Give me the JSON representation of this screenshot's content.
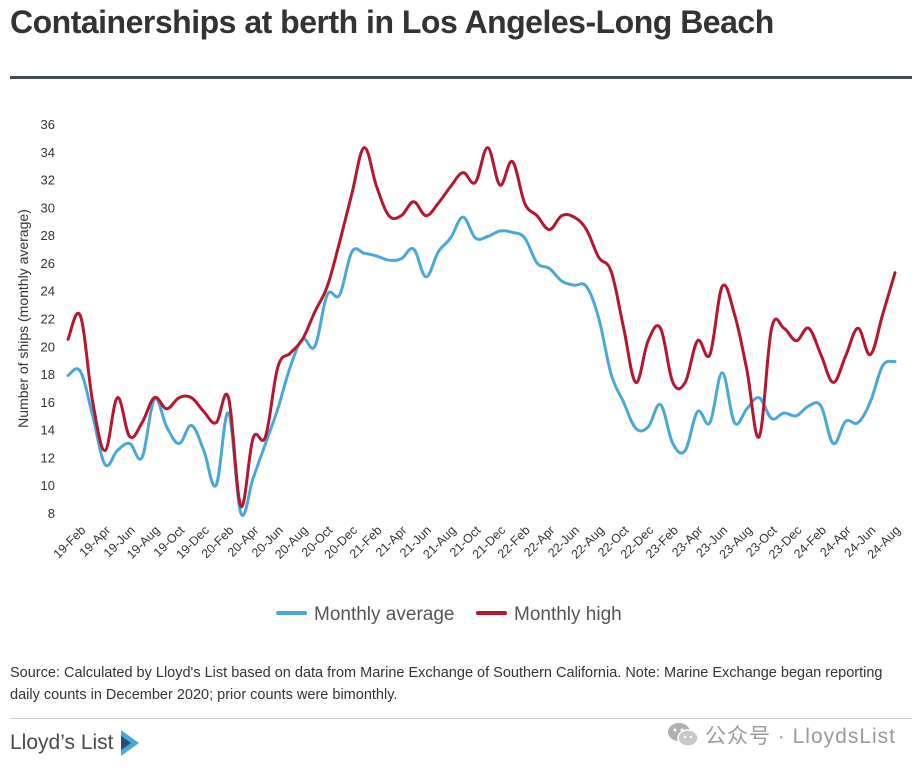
{
  "title": "Containerships at berth in Los Angeles-Long Beach",
  "source": "Source: Calculated by Lloyd's List based on data from Marine Exchange of Southern California. Note: Marine Exchange began reporting daily counts in December 2020; prior counts were bimonthly.",
  "brand": "Lloyd’s List",
  "wechat": "公众号 · LloydsList",
  "colors": {
    "average": "#4aa8d8",
    "high": "#b5172f",
    "rule": "#444a52"
  },
  "chart_data": {
    "type": "line",
    "xlabel": "",
    "ylabel": "Number of ships (monthly average)",
    "ylim": [
      8,
      36
    ],
    "yticks": [
      8,
      10,
      12,
      14,
      16,
      18,
      20,
      22,
      24,
      26,
      28,
      30,
      32,
      34,
      36
    ],
    "xtick_labels": [
      "19-Feb",
      "19-Apr",
      "19-Jun",
      "19-Aug",
      "19-Oct",
      "19-Dec",
      "20-Feb",
      "20-Apr",
      "20-Jun",
      "20-Aug",
      "20-Oct",
      "20-Dec",
      "21-Feb",
      "21-Apr",
      "21-Jun",
      "21-Aug",
      "21-Oct",
      "21-Dec",
      "22-Feb",
      "22-Apr",
      "22-Jun",
      "22-Aug",
      "22-Oct",
      "22-Dec",
      "23-Feb",
      "23-Apr",
      "23-Jun",
      "23-Aug",
      "23-Oct",
      "23-Dec",
      "24-Feb",
      "24-Apr",
      "24-Jun",
      "24-Aug"
    ],
    "x": [
      "19-Jan",
      "19-Feb",
      "19-Mar",
      "19-Apr",
      "19-May",
      "19-Jun",
      "19-Jul",
      "19-Aug",
      "19-Sep",
      "19-Oct",
      "19-Nov",
      "19-Dec",
      "20-Jan",
      "20-Feb",
      "20-Mar",
      "20-Apr",
      "20-May",
      "20-Jun",
      "20-Jul",
      "20-Aug",
      "20-Sep",
      "20-Oct",
      "20-Nov",
      "20-Dec",
      "21-Jan",
      "21-Feb",
      "21-Mar",
      "21-Apr",
      "21-May",
      "21-Jun",
      "21-Jul",
      "21-Aug",
      "21-Sep",
      "21-Oct",
      "21-Nov",
      "21-Dec",
      "22-Jan",
      "22-Feb",
      "22-Mar",
      "22-Apr",
      "22-May",
      "22-Jun",
      "22-Jul",
      "22-Aug",
      "22-Sep",
      "22-Oct",
      "22-Nov",
      "22-Dec",
      "23-Jan",
      "23-Feb",
      "23-Mar",
      "23-Apr",
      "23-May",
      "23-Jun",
      "23-Jul",
      "23-Aug",
      "23-Sep",
      "23-Oct",
      "23-Nov",
      "23-Dec",
      "24-Jan",
      "24-Feb",
      "24-Mar",
      "24-Apr",
      "24-May",
      "24-Jun",
      "24-Jul",
      "24-Aug"
    ],
    "series": [
      {
        "name": "Monthly average",
        "color": "#4aa8d8",
        "values": [
          17.9,
          18.2,
          15.0,
          11.5,
          12.5,
          13.0,
          12.0,
          16.2,
          14.2,
          13.0,
          14.3,
          12.5,
          10.0,
          15.2,
          8.0,
          10.5,
          13.0,
          15.5,
          18.5,
          20.5,
          20.0,
          23.7,
          23.7,
          26.8,
          26.7,
          26.5,
          26.2,
          26.3,
          27.0,
          25.0,
          26.8,
          27.8,
          29.3,
          27.8,
          27.9,
          28.3,
          28.2,
          27.8,
          26.0,
          25.6,
          24.7,
          24.4,
          24.3,
          22.0,
          18.0,
          16.0,
          14.1,
          14.2,
          15.8,
          13.0,
          12.5,
          15.3,
          14.5,
          18.1,
          14.5,
          15.5,
          16.3,
          14.8,
          15.2,
          15.0,
          15.7,
          15.7,
          13.0,
          14.6,
          14.5,
          16.0,
          18.6,
          18.9
        ]
      },
      {
        "name": "Monthly high",
        "color": "#b5172f",
        "values": [
          20.5,
          22.2,
          16.0,
          12.5,
          16.3,
          13.5,
          14.5,
          16.3,
          15.5,
          16.3,
          16.3,
          15.3,
          14.5,
          16.3,
          8.5,
          13.4,
          13.5,
          18.5,
          19.5,
          20.5,
          22.5,
          24.3,
          27.5,
          31.0,
          34.3,
          31.5,
          29.4,
          29.4,
          30.4,
          29.4,
          30.3,
          31.5,
          32.5,
          31.8,
          34.3,
          31.6,
          33.3,
          30.3,
          29.4,
          28.4,
          29.4,
          29.3,
          28.4,
          26.4,
          25.4,
          21.4,
          17.4,
          20.4,
          21.3,
          17.4,
          17.4,
          20.4,
          19.4,
          24.3,
          22.3,
          18.3,
          13.5,
          21.3,
          21.3,
          20.4,
          21.3,
          19.4,
          17.4,
          19.3,
          21.3,
          19.4,
          22.3,
          25.3
        ]
      }
    ],
    "legend": [
      "Monthly average",
      "Monthly high"
    ],
    "legend_position": "bottom",
    "grid": false
  }
}
